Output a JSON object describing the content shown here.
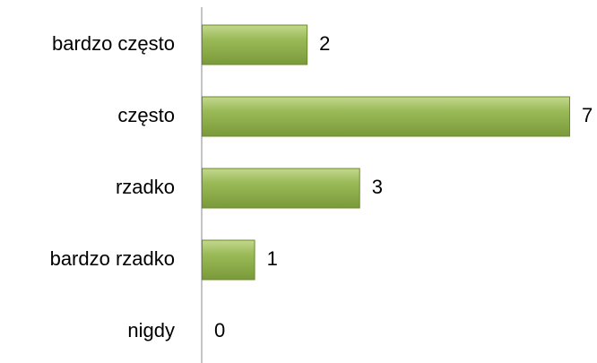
{
  "chart_data": {
    "type": "bar",
    "orientation": "horizontal",
    "categories": [
      "bardzo często",
      "często",
      "rzadko",
      "bardzo rzadko",
      "nigdy"
    ],
    "values": [
      2,
      7,
      3,
      1,
      0
    ],
    "color": "#9bbb59"
  }
}
